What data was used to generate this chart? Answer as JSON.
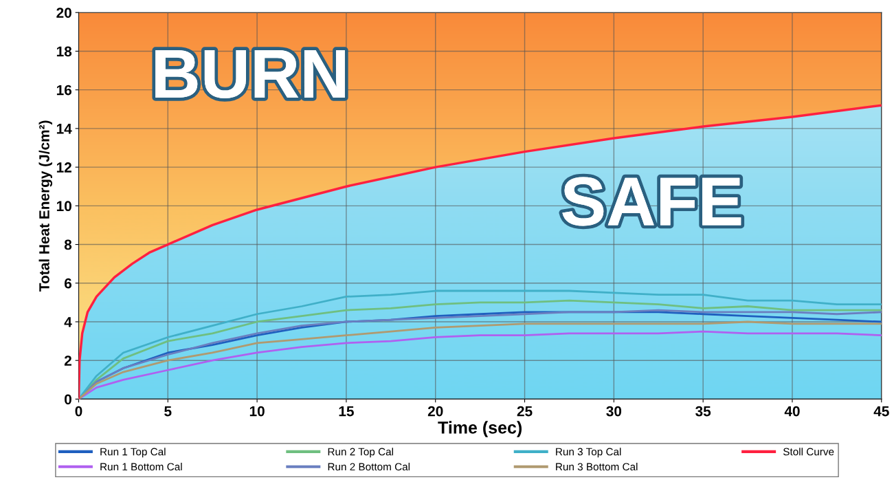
{
  "chart_data": {
    "type": "line",
    "xlabel": "Time (sec)",
    "ylabel": "Total Heat Energy (J/cm²)",
    "xlim": [
      0,
      45
    ],
    "ylim": [
      0,
      20
    ],
    "xticks": [
      0,
      5,
      10,
      15,
      20,
      25,
      30,
      35,
      40,
      45
    ],
    "yticks": [
      0,
      2,
      4,
      6,
      8,
      10,
      12,
      14,
      16,
      18,
      20
    ],
    "grid": true,
    "legend": "bottom",
    "marker": "none",
    "line_style": "solid",
    "annotations": [
      "BURN",
      "SAFE"
    ],
    "x": [
      0,
      1,
      2.5,
      5,
      7.5,
      10,
      12.5,
      15,
      17.5,
      20,
      22.5,
      25,
      27.5,
      30,
      32.5,
      35,
      37.5,
      40,
      42.5,
      45
    ],
    "series": [
      {
        "name": "Run 1 Top Cal",
        "color": "#1f5fbf",
        "values": [
          0,
          0.9,
          1.6,
          2.4,
          2.8,
          3.3,
          3.7,
          4.0,
          4.1,
          4.3,
          4.4,
          4.5,
          4.5,
          4.5,
          4.5,
          4.4,
          4.3,
          4.2,
          4.1,
          4.0
        ]
      },
      {
        "name": "Run 1 Bottom Cal",
        "color": "#b060f0",
        "values": [
          0,
          0.6,
          1.0,
          1.5,
          2.0,
          2.4,
          2.7,
          2.9,
          3.0,
          3.2,
          3.3,
          3.3,
          3.4,
          3.4,
          3.4,
          3.5,
          3.4,
          3.4,
          3.4,
          3.3
        ]
      },
      {
        "name": "Run 2 Top Cal",
        "color": "#6fbf80",
        "values": [
          0,
          1.0,
          2.1,
          3.0,
          3.4,
          4.0,
          4.3,
          4.6,
          4.7,
          4.9,
          5.0,
          5.0,
          5.1,
          5.0,
          4.9,
          4.7,
          4.8,
          4.6,
          4.6,
          4.6
        ]
      },
      {
        "name": "Run 2 Bottom Cal",
        "color": "#6a7fc0",
        "values": [
          0,
          0.9,
          1.6,
          2.3,
          2.9,
          3.4,
          3.8,
          4.0,
          4.1,
          4.2,
          4.3,
          4.4,
          4.5,
          4.5,
          4.6,
          4.5,
          4.5,
          4.5,
          4.4,
          4.5
        ]
      },
      {
        "name": "Run 3 Top Cal",
        "color": "#40b0c8",
        "values": [
          0,
          1.2,
          2.4,
          3.2,
          3.8,
          4.4,
          4.8,
          5.3,
          5.4,
          5.6,
          5.6,
          5.6,
          5.6,
          5.5,
          5.4,
          5.4,
          5.1,
          5.1,
          4.9,
          4.9
        ]
      },
      {
        "name": "Run 3 Bottom Cal",
        "color": "#b09a70",
        "values": [
          0,
          0.8,
          1.4,
          2.0,
          2.4,
          2.9,
          3.1,
          3.3,
          3.5,
          3.7,
          3.8,
          3.9,
          3.9,
          3.9,
          3.9,
          3.9,
          4.0,
          3.9,
          3.9,
          3.9
        ]
      },
      {
        "name": "Stoll Curve",
        "color": "#ff2040",
        "x": [
          0,
          0.05,
          0.2,
          0.5,
          1,
          2,
          3,
          4,
          5,
          7.5,
          10,
          15,
          20,
          25,
          30,
          35,
          40,
          45
        ],
        "values": [
          0,
          2,
          3.4,
          4.5,
          5.3,
          6.3,
          7.0,
          7.6,
          8.0,
          9.0,
          9.8,
          11.0,
          12.0,
          12.8,
          13.5,
          14.1,
          14.6,
          15.2
        ]
      }
    ]
  }
}
